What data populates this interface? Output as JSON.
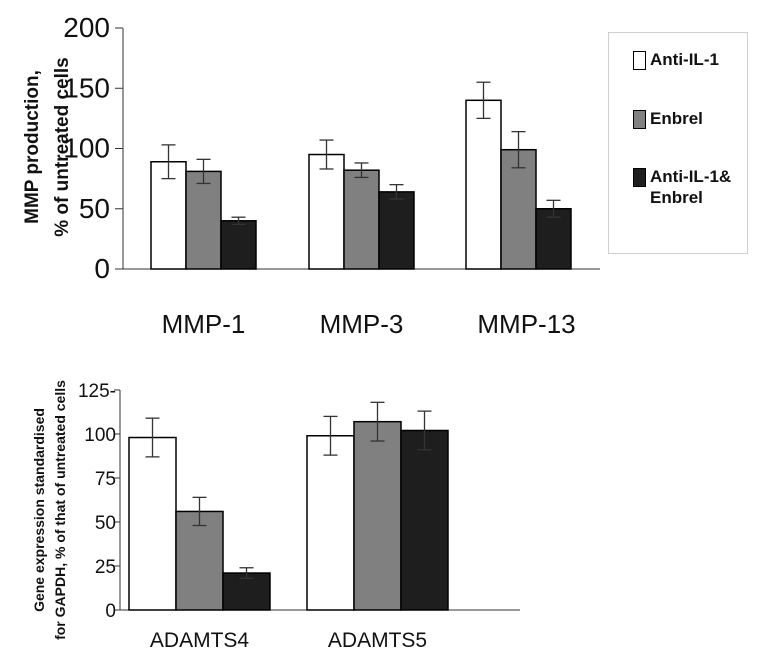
{
  "colors": {
    "Anti-IL-1": "#ffffff",
    "Enbrel": "#808080",
    "Anti-IL-1& Enbrel": "#1e1e1e",
    "axis": "#333333"
  },
  "legend": {
    "position": "top-right",
    "items": [
      {
        "label": "Anti-IL-1",
        "color": "#ffffff"
      },
      {
        "label": "Enbrel",
        "color": "#808080"
      },
      {
        "label": "Anti-IL-1&\nEnbrel",
        "color": "#1e1e1e"
      }
    ]
  },
  "chart_data": [
    {
      "type": "bar",
      "ylabel_line1": "MMP production,",
      "ylabel_line2": "% of untreated cells",
      "ylim": [
        0,
        200
      ],
      "yticks": [
        "0",
        "50",
        "100",
        "150",
        "200"
      ],
      "categories": [
        "MMP-1",
        "MMP-3",
        "MMP-13"
      ],
      "series": [
        {
          "name": "Anti-IL-1",
          "values": [
            89,
            95,
            140
          ],
          "errors": [
            14,
            12,
            15
          ]
        },
        {
          "name": "Enbrel",
          "values": [
            81,
            82,
            99
          ],
          "errors": [
            10,
            6,
            15
          ]
        },
        {
          "name": "Anti-IL-1& Enbrel",
          "values": [
            40,
            64,
            50
          ],
          "errors": [
            3,
            6,
            7
          ]
        }
      ],
      "grid": false
    },
    {
      "type": "bar",
      "ylabel_line1": "Gene expression standardised",
      "ylabel_line2": "for GAPDH, % of that of untreated cells",
      "ylim": [
        0,
        125
      ],
      "yticks": [
        "0",
        "25",
        "50",
        "75",
        "100",
        "125-"
      ],
      "categories": [
        "ADAMTS4",
        "ADAMTS5"
      ],
      "series": [
        {
          "name": "Anti-IL-1",
          "values": [
            98,
            99
          ],
          "errors": [
            11,
            11
          ]
        },
        {
          "name": "Enbrel",
          "values": [
            56,
            107
          ],
          "errors": [
            8,
            11
          ]
        },
        {
          "name": "Anti-IL-1& Enbrel",
          "values": [
            21,
            102
          ],
          "errors": [
            3,
            11
          ]
        }
      ],
      "grid": false
    }
  ]
}
